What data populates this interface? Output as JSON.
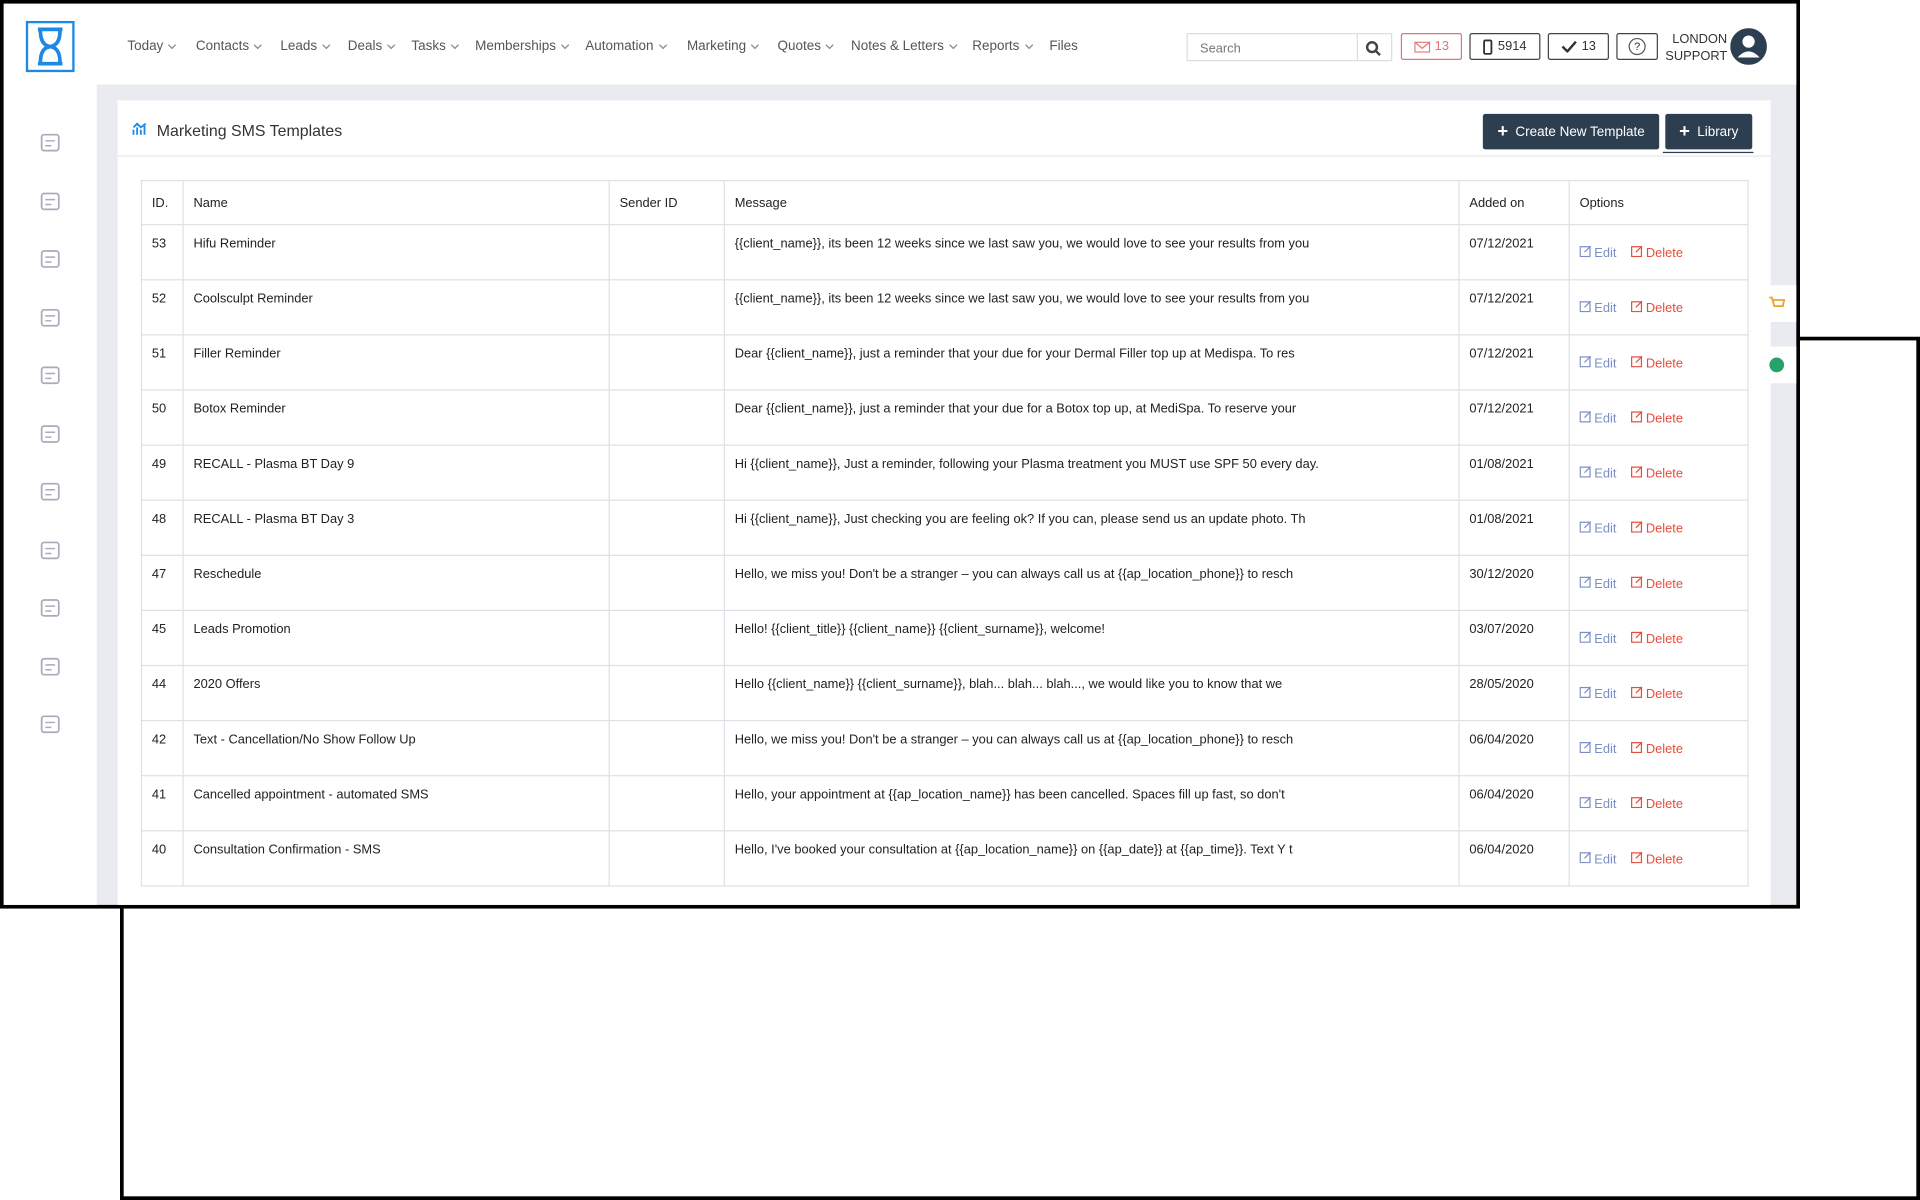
{
  "nav": [
    "Today",
    "Contacts",
    "Leads",
    "Deals",
    "Tasks",
    "Memberships",
    "Automation",
    "Marketing",
    "Quotes",
    "Notes & Letters",
    "Reports",
    "Files"
  ],
  "search_placeholder": "Search",
  "badges": {
    "mail": "13",
    "phone": "5914",
    "tasks": "13",
    "help": "?"
  },
  "user": {
    "line1": "LONDON",
    "line2": "SUPPORT"
  },
  "page": {
    "title": "Marketing SMS Templates",
    "create_button": "Create New Template",
    "library_button": "Library"
  },
  "table": {
    "headers": [
      "ID.",
      "Name",
      "Sender ID",
      "Message",
      "Added on",
      "Options"
    ],
    "edit": "Edit",
    "delete": "Delete",
    "rows": [
      [
        53,
        "Hifu Reminder",
        "{{client_name}}, its been 12 weeks since we last saw you, we would love to see your results from you",
        "07/12/2021"
      ],
      [
        52,
        "Coolsculpt Reminder",
        "{{client_name}}, its been 12 weeks since we last saw you, we would love to see your results from you",
        "07/12/2021"
      ],
      [
        51,
        "Filler Reminder",
        "Dear {{client_name}}, just a reminder that your due for your Dermal Filler top up at Medispa. To res",
        "07/12/2021"
      ],
      [
        50,
        "Botox Reminder",
        "Dear {{client_name}}, just a reminder that your due for a Botox top up, at MediSpa. To reserve your",
        "07/12/2021"
      ],
      [
        49,
        "RECALL - Plasma BT Day 9",
        "Hi {{client_name}}, Just a reminder, following your Plasma treatment you MUST use SPF 50 every day.",
        "01/08/2021"
      ],
      [
        48,
        "RECALL - Plasma BT Day 3",
        "Hi {{client_name}}, Just checking you are feeling ok? If you can, please send us an update photo. Th",
        "01/08/2021"
      ],
      [
        47,
        "Reschedule",
        "Hello, we miss you! Don't be a stranger – you can always call us at {{ap_location_phone}} to resch",
        "30/12/2020"
      ],
      [
        45,
        "Leads Promotion",
        "Hello! {{client_title}} {{client_name}} {{client_surname}}, welcome!",
        "03/07/2020"
      ],
      [
        44,
        "2020 Offers",
        "Hello {{client_name}} {{client_surname}}, blah... blah... blah..., we would like you to know that we",
        "28/05/2020"
      ],
      [
        42,
        "Text - Cancellation/No Show Follow Up",
        "Hello, we miss you! Don't be a stranger – you can always call us at {{ap_location_phone}} to resch",
        "06/04/2020"
      ],
      [
        41,
        "Cancelled appointment - automated SMS",
        "Hello, your appointment at {{ap_location_name}} has been cancelled. Spaces fill up fast, so don't",
        "06/04/2020"
      ],
      [
        40,
        "Consultation Confirmation - SMS",
        "Hello, I've booked your consultation at {{ap_location_name}} on {{ap_date}} at {{ap_time}}. Text Y t",
        "06/04/2020"
      ]
    ]
  }
}
